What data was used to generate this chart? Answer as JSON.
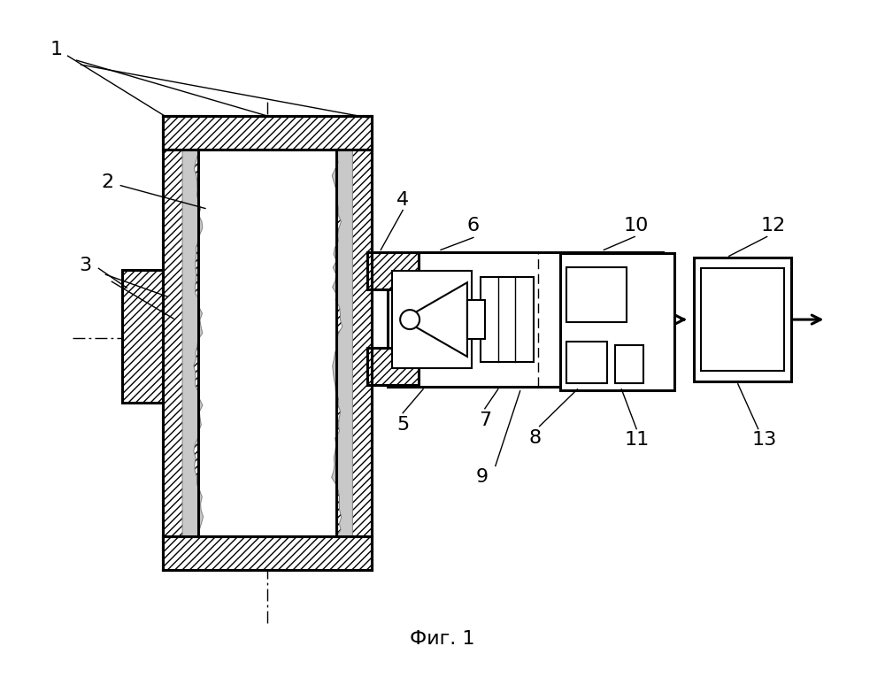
{
  "fig_label": "Фиг. 1",
  "bg_color": "#ffffff",
  "line_color": "#000000"
}
